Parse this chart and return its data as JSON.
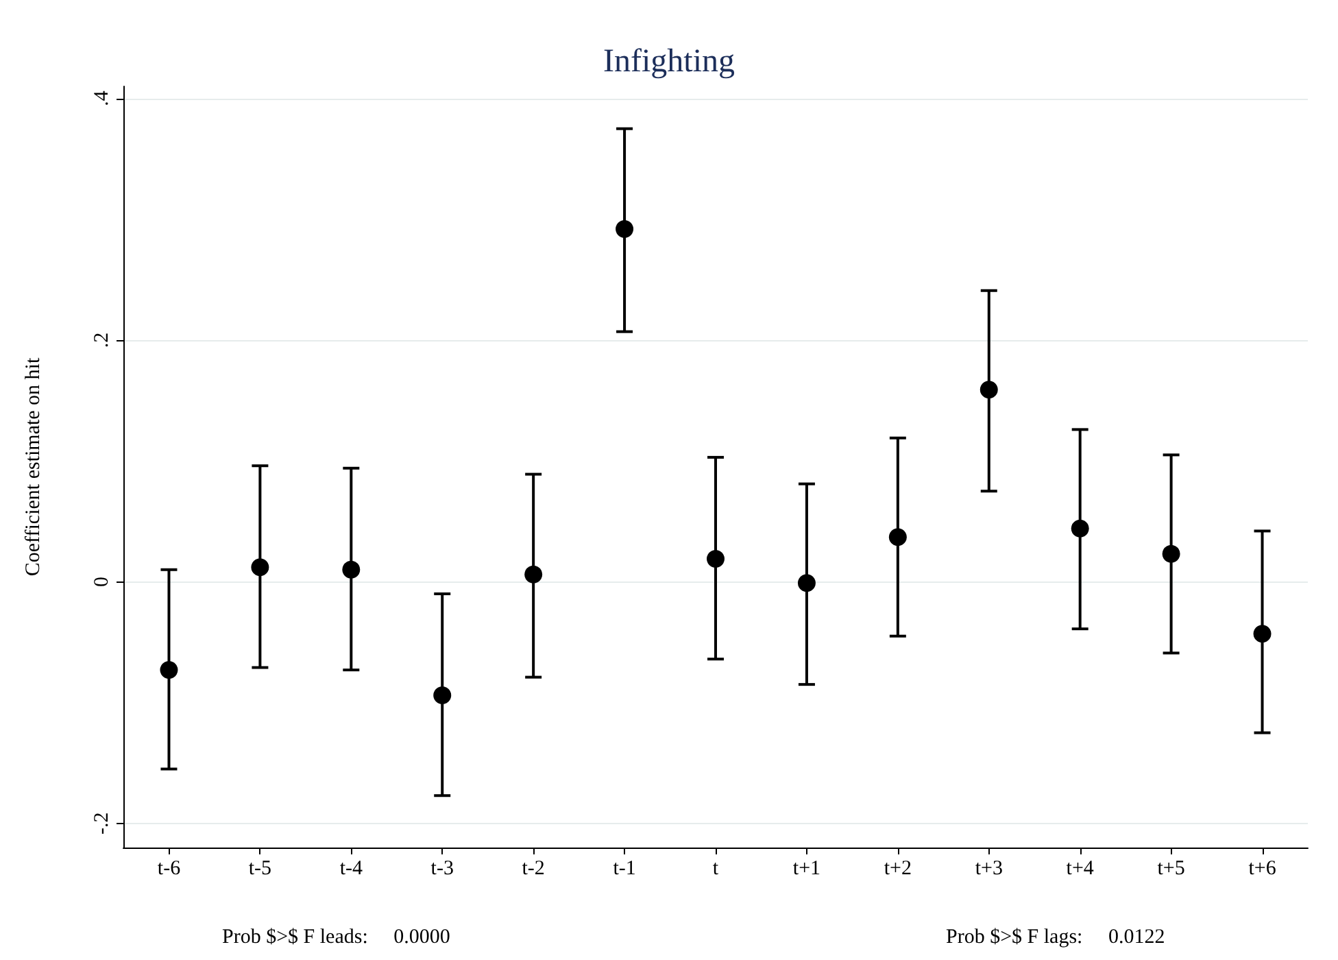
{
  "chart_data": {
    "type": "scatter",
    "title": "Infighting",
    "ylabel": "Coefficient estimate on hit",
    "categories": [
      "t-6",
      "t-5",
      "t-4",
      "t-3",
      "t-2",
      "t-1",
      "t",
      "t+1",
      "t+2",
      "t+3",
      "t+4",
      "t+5",
      "t+6"
    ],
    "values": [
      -0.073,
      0.012,
      0.01,
      -0.094,
      0.006,
      0.292,
      0.019,
      -0.001,
      0.037,
      0.159,
      0.044,
      0.023,
      -0.043
    ],
    "errors": [
      [
        -0.155,
        0.01
      ],
      [
        -0.071,
        0.096
      ],
      [
        -0.073,
        0.094
      ],
      [
        -0.177,
        -0.01
      ],
      [
        -0.079,
        0.089
      ],
      [
        0.207,
        0.375
      ],
      [
        -0.064,
        0.103
      ],
      [
        -0.085,
        0.081
      ],
      [
        -0.045,
        0.119
      ],
      [
        0.075,
        0.241
      ],
      [
        -0.039,
        0.126
      ],
      [
        -0.059,
        0.105
      ],
      [
        -0.125,
        0.042
      ]
    ],
    "color": "#000000",
    "marker": "circle",
    "grid": "y",
    "ylim": [
      -0.22,
      0.41
    ],
    "yticks": [
      {
        "value": -0.2,
        "label": "-.2"
      },
      {
        "value": 0,
        "label": "0"
      },
      {
        "value": 0.2,
        "label": ".2"
      },
      {
        "value": 0.4,
        "label": ".4"
      }
    ],
    "annotations": [
      "Prob $>$ F leads:     0.0000",
      "Prob $>$ F lags:     0.0122"
    ]
  }
}
